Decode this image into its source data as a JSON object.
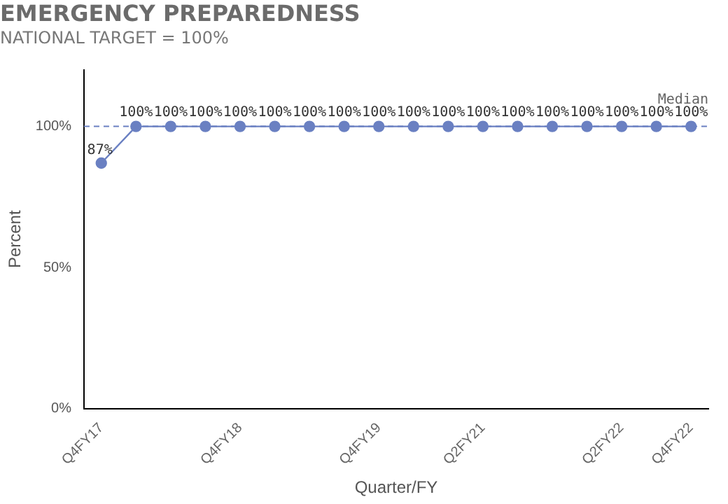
{
  "chart_data": {
    "type": "line",
    "title": "EMERGENCY PREPAREDNESS",
    "subtitle": "NATIONAL TARGET = 100%",
    "xlabel": "Quarter/FY",
    "ylabel": "Percent",
    "categories": [
      "Q4FY17",
      null,
      null,
      null,
      "Q4FY18",
      null,
      null,
      null,
      "Q4FY19",
      null,
      null,
      "Q2FY21",
      null,
      null,
      null,
      "Q2FY22",
      null,
      "Q4FY22"
    ],
    "series": [
      {
        "color": "#6a80c2",
        "values": [
          87,
          100,
          100,
          100,
          100,
          100,
          100,
          100,
          100,
          100,
          100,
          100,
          100,
          100,
          100,
          100,
          100,
          100
        ],
        "value_labels": [
          "87%",
          "100%",
          "100%",
          "100%",
          "100%",
          "100%",
          "100%",
          "100%",
          "100%",
          "100%",
          "100%",
          "100%",
          "100%",
          "100%",
          "100%",
          "100%",
          "100%",
          "100%"
        ]
      }
    ],
    "ylim": [
      0,
      120
    ],
    "yticks": [
      {
        "value": 0,
        "label": "0%"
      },
      {
        "value": 50,
        "label": "50%"
      },
      {
        "value": 100,
        "label": "100%"
      }
    ],
    "ref_lines": [
      {
        "axis": "y",
        "value": 100,
        "label": "Median",
        "color": "#6a80c2",
        "line_style": "dashed"
      }
    ],
    "grid": false,
    "legend": false,
    "marker": "circle",
    "line_style": "solid"
  }
}
